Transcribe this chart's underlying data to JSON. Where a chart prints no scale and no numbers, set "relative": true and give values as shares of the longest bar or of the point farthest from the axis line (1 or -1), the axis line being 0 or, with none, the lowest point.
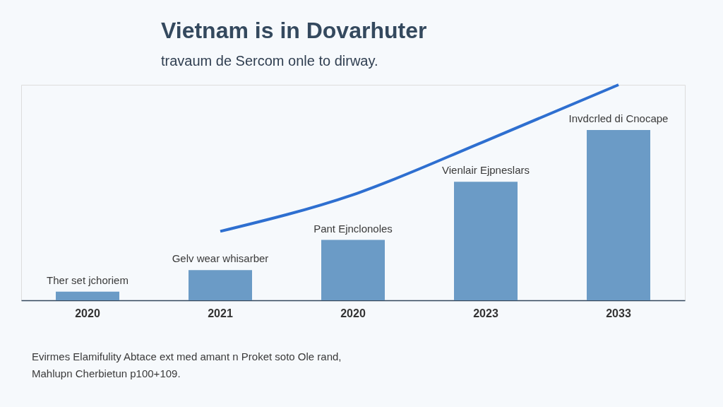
{
  "chart_data": {
    "type": "bar",
    "title": "Vietnam is in Dovarhuter",
    "subtitle": "travaum de Sercom onle to dirway.",
    "relative": true,
    "categories": [
      "2020",
      "2021",
      "2020",
      "2023",
      "2033"
    ],
    "series": [
      {
        "color": "#6b9bc6",
        "values": [
          0.04,
          0.14,
          0.28,
          0.55,
          0.79
        ]
      },
      {
        "type": "line",
        "color": "#2e6fd0",
        "values": [
          null,
          0.32,
          0.49,
          0.74,
          1.0
        ]
      }
    ],
    "annotations": [
      "Ther set jchoriem",
      "Gelv wear whisarber",
      "Pant Ejnclonoles",
      "Vienlair Ejpneslars",
      "Invdcrled di Cnocape",
      "Evirmes Elamifulity Abtace ext med amant n Proket soto Ole rand,",
      "Mahlupn Cherbietun p100+109."
    ],
    "grid": false
  }
}
